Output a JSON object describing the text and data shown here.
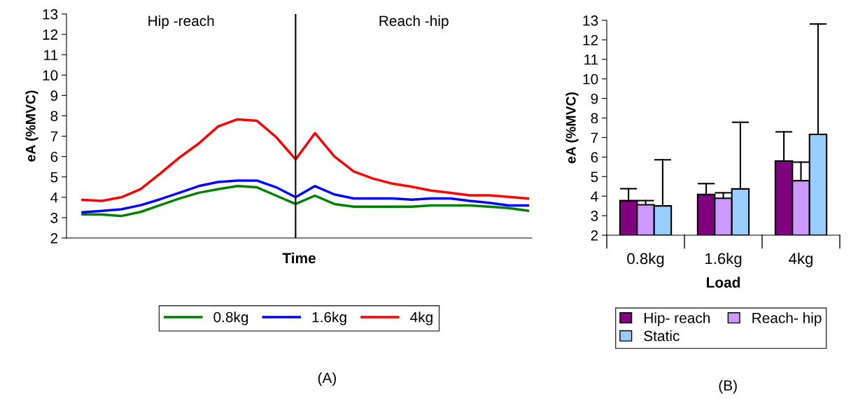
{
  "chart_data": [
    {
      "type": "line",
      "xlabel": "Time",
      "ylabel": "eA (%MVC)",
      "categories": [
        null,
        null,
        null,
        null,
        null,
        null,
        null,
        null,
        null,
        null,
        null,
        null,
        null,
        null,
        null,
        null,
        null,
        null,
        null,
        null,
        null,
        null,
        null,
        null
      ],
      "series": [
        {
          "name": "0.8kg",
          "color": "#008000",
          "values": [
            3.16,
            3.15,
            3.08,
            3.28,
            3.61,
            3.94,
            4.22,
            4.4,
            4.55,
            4.49,
            4.08,
            3.67,
            4.08,
            3.67,
            3.54,
            3.54,
            3.54,
            3.54,
            3.6,
            3.6,
            3.6,
            3.54,
            3.47,
            3.34
          ]
        },
        {
          "name": "1.6kg",
          "color": "#0000ff",
          "values": [
            3.26,
            3.33,
            3.41,
            3.61,
            3.9,
            4.22,
            4.55,
            4.75,
            4.82,
            4.82,
            4.49,
            4.0,
            4.55,
            4.14,
            3.94,
            3.94,
            3.94,
            3.88,
            3.94,
            3.94,
            3.82,
            3.73,
            3.6,
            3.6
          ]
        },
        {
          "name": "4kg",
          "color": "#ff0000",
          "values": [
            3.87,
            3.82,
            4.0,
            4.4,
            5.16,
            5.95,
            6.64,
            7.48,
            7.83,
            7.76,
            6.95,
            5.86,
            7.15,
            6.01,
            5.27,
            4.92,
            4.67,
            4.52,
            4.33,
            4.22,
            4.1,
            4.1,
            4.02,
            3.94
          ]
        }
      ],
      "ylim": [
        2,
        13
      ],
      "yticks": [
        2,
        3,
        4,
        5,
        6,
        7,
        8,
        9,
        10,
        11,
        12,
        13
      ],
      "grid": false,
      "legend": "bottom",
      "marker": "none",
      "line_style": "solid",
      "annotations": [
        "Hip -reach",
        "Reach -hip",
        "(A)"
      ]
    },
    {
      "type": "bar",
      "xlabel": "Load",
      "ylabel": "eA (%MVC)",
      "categories": [
        "0.8kg",
        "1.6kg",
        "4kg"
      ],
      "series": [
        {
          "name": "Hip- reach",
          "color": "#800080",
          "values": [
            3.77,
            4.09,
            5.8
          ],
          "errors": [
            [
              3.77,
              4.38
            ],
            [
              4.09,
              4.64
            ],
            [
              5.8,
              7.29
            ]
          ]
        },
        {
          "name": "Reach- hip",
          "color": "#cc99ff",
          "values": [
            3.56,
            3.89,
            4.79
          ],
          "errors": [
            [
              3.56,
              3.77
            ],
            [
              3.89,
              4.17
            ],
            [
              4.79,
              5.74
            ]
          ]
        },
        {
          "name": "Static",
          "color": "#99ccff",
          "values": [
            3.5,
            4.37,
            7.16
          ],
          "errors": [
            [
              3.5,
              5.86
            ],
            [
              4.37,
              7.78
            ],
            [
              7.16,
              12.81
            ]
          ]
        }
      ],
      "ylim": [
        2,
        13
      ],
      "yticks": [
        2,
        3,
        4,
        5,
        6,
        7,
        8,
        9,
        10,
        11,
        12,
        13
      ],
      "grid": false,
      "legend": "bottom",
      "annotations": [
        "(B)"
      ]
    }
  ]
}
